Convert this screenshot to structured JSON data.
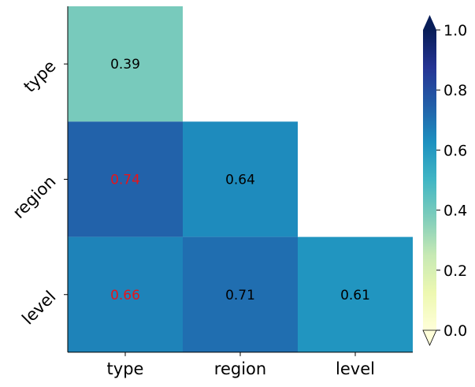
{
  "chart_data": {
    "type": "heatmap",
    "layout": "lower-triangular",
    "categories": [
      "type",
      "region",
      "level"
    ],
    "rows": [
      "type",
      "region",
      "level"
    ],
    "values": [
      [
        0.39,
        null,
        null
      ],
      [
        0.74,
        0.64,
        null
      ],
      [
        0.66,
        0.71,
        0.61
      ]
    ],
    "highlighted_cells": [
      [
        1,
        0
      ],
      [
        2,
        0
      ]
    ],
    "highlight_color": "#e8141a",
    "label_color": "#000000",
    "colormap": "YlGnBu",
    "colorbar": {
      "range": [
        0.0,
        1.0
      ],
      "ticks": [
        "0.0",
        "0.2",
        "0.4",
        "0.6",
        "0.8",
        "1.0"
      ],
      "extend": "both"
    },
    "title": "",
    "xlabel": "",
    "ylabel": ""
  }
}
